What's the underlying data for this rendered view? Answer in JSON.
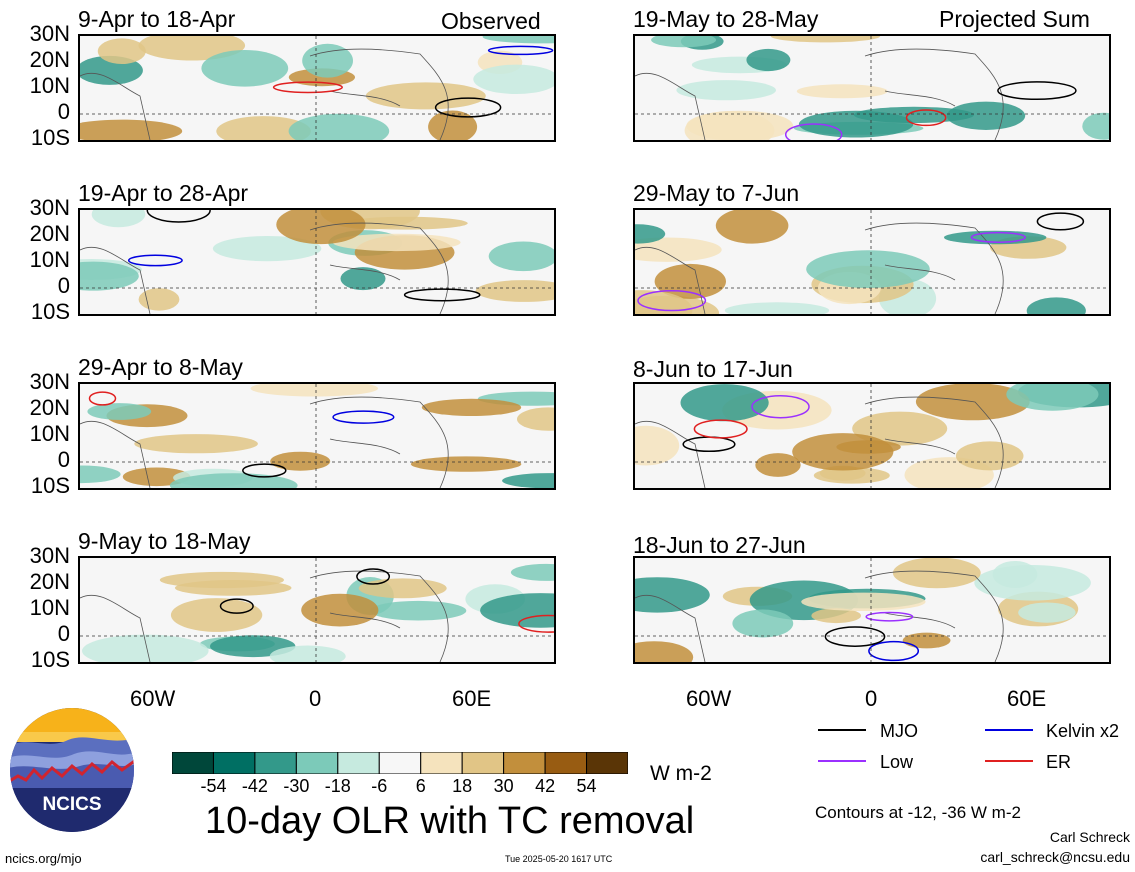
{
  "labels": {
    "observed": "Observed",
    "projected": "Projected Sum",
    "lat": [
      "30N",
      "20N",
      "10N",
      "0",
      "10S"
    ],
    "lon": [
      "60W",
      "0",
      "60E"
    ]
  },
  "panels": [
    {
      "title": "9-Apr to 18-Apr"
    },
    {
      "title": "19-Apr to 28-Apr"
    },
    {
      "title": "29-Apr to 8-May"
    },
    {
      "title": "9-May to 18-May"
    },
    {
      "title": "19-May to 28-May"
    },
    {
      "title": "29-May to 7-Jun"
    },
    {
      "title": "8-Jun to 17-Jun"
    },
    {
      "title": "18-Jun to 27-Jun"
    }
  ],
  "colorbar": {
    "colors": [
      "#00473a",
      "#006f63",
      "#33998a",
      "#7ccab9",
      "#c6eadf",
      "#f7f7f7",
      "#f5e3bd",
      "#e1c586",
      "#c28f3c",
      "#985c12",
      "#5a3506"
    ],
    "ticks": [
      "-54",
      "-42",
      "-30",
      "-18",
      "-6",
      "6",
      "18",
      "30",
      "42",
      "54"
    ],
    "units": "W m-2"
  },
  "legend": [
    {
      "label": "MJO",
      "color": "#000000"
    },
    {
      "label": "Kelvin x2",
      "color": "#0000e0"
    },
    {
      "label": "Low",
      "color": "#9b30ff"
    },
    {
      "label": "ER",
      "color": "#e02020"
    }
  ],
  "main_title": "10-day OLR with TC removal",
  "contours_note": "Contours at -12, -36 W m-2",
  "author": "Carl Schreck",
  "email": "carl_schreck@ncsu.edu",
  "site": "ncics.org/mjo",
  "timestamp": "Tue 2025-05-20 1617 UTC",
  "logo_text": "NCICS"
}
